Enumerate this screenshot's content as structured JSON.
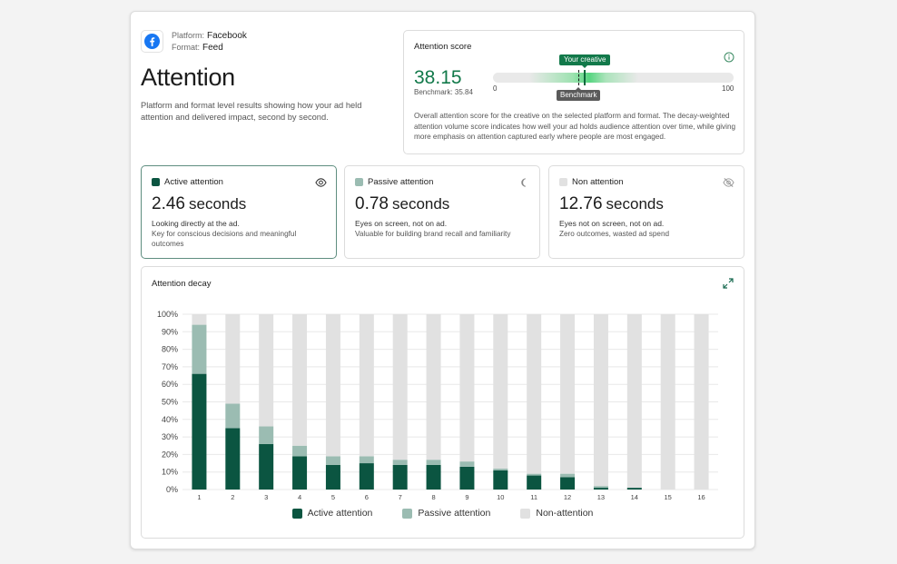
{
  "header": {
    "platform_key": "Platform:",
    "platform_value": "Facebook",
    "format_key": "Format:",
    "format_value": "Feed",
    "title": "Attention",
    "description": "Platform and format level results showing how your ad held attention and delivered impact, second by second."
  },
  "score": {
    "title": "Attention score",
    "value": "38.15",
    "benchmark_label": "Benchmark: 35.84",
    "creative_pill": "Your creative",
    "benchmark_pill": "Benchmark",
    "min_label": "0",
    "max_label": "100",
    "creative_value": 38.15,
    "benchmark_value": 35.84,
    "description": "Overall attention score for the creative on the selected platform and format. The decay-weighted attention volume score indicates how well your ad holds audience attention over time, while giving more emphasis on attention captured early where people are most engaged."
  },
  "metrics": [
    {
      "label": "Active attention",
      "value": "2.46",
      "unit": "seconds",
      "line1": "Looking directly at the ad.",
      "line2": "Key for conscious decisions and meaningful outcomes",
      "color": "#0b5541",
      "icon": "eye-icon"
    },
    {
      "label": "Passive attention",
      "value": "0.78",
      "unit": "seconds",
      "line1": "Eyes on screen, not on ad.",
      "line2": "Valuable for building brand recall and familiarity",
      "color": "#9bbcb2",
      "icon": "moon-icon"
    },
    {
      "label": "Non attention",
      "value": "12.76",
      "unit": "seconds",
      "line1": "Eyes not on screen, not on ad.",
      "line2": "Zero outcomes, wasted ad spend",
      "color": "#e1e1e1",
      "icon": "eye-off-icon"
    }
  ],
  "chart_title": "Attention decay",
  "chart_data": {
    "type": "bar",
    "stacked": true,
    "categories": [
      "1",
      "2",
      "3",
      "4",
      "5",
      "6",
      "7",
      "8",
      "9",
      "10",
      "11",
      "12",
      "13",
      "14",
      "15",
      "16"
    ],
    "series": [
      {
        "name": "Active attention",
        "color": "#0b5541",
        "values": [
          66,
          35,
          26,
          19,
          14,
          15,
          14,
          14,
          13,
          11,
          8,
          7,
          1,
          1,
          0,
          0
        ]
      },
      {
        "name": "Passive attention",
        "color": "#9bbcb2",
        "values": [
          28,
          14,
          10,
          6,
          5,
          4,
          3,
          3,
          3,
          1,
          1,
          2,
          1,
          0,
          0,
          0
        ]
      },
      {
        "name": "Non-attention",
        "color": "#e1e1e1",
        "values": [
          6,
          51,
          64,
          75,
          81,
          81,
          83,
          83,
          84,
          88,
          91,
          91,
          98,
          99,
          100,
          100
        ]
      }
    ],
    "y_ticks": [
      "0%",
      "10%",
      "20%",
      "30%",
      "40%",
      "50%",
      "60%",
      "70%",
      "80%",
      "90%",
      "100%"
    ],
    "ylim": [
      0,
      100
    ],
    "grid": true,
    "legend": "bottom"
  }
}
